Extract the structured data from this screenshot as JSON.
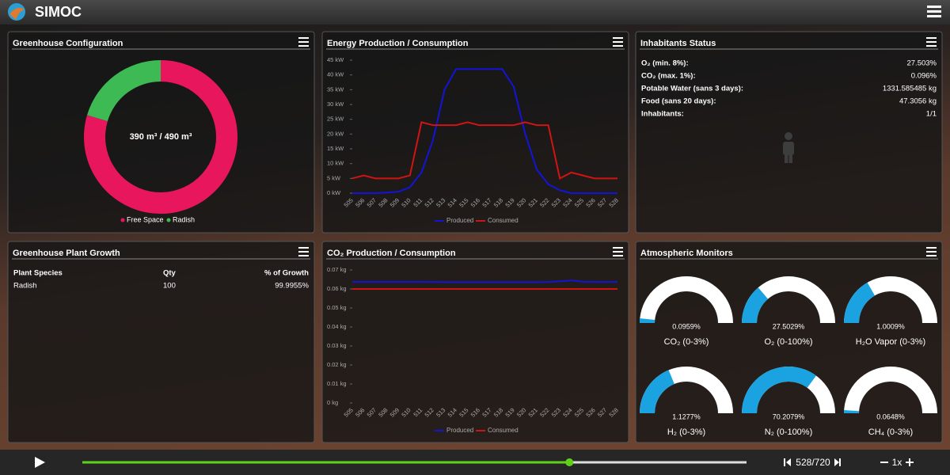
{
  "header": {
    "title": "SIMOC"
  },
  "greenhouse_configuration": {
    "title": "Greenhouse Configuration",
    "type": "donut",
    "center_label": "390 m³ / 490 m³",
    "categories": [
      "Free Space",
      "Radish"
    ],
    "values": [
      390,
      100
    ],
    "colors": [
      "#e8175d",
      "#3dba54"
    ]
  },
  "energy": {
    "title": "Energy Production / Consumption",
    "type": "line",
    "x": [
      505,
      506,
      507,
      508,
      509,
      510,
      511,
      512,
      513,
      514,
      515,
      516,
      517,
      518,
      519,
      520,
      521,
      522,
      523,
      524,
      525,
      526,
      527,
      528
    ],
    "xlim": [
      505,
      528
    ],
    "ylim": [
      0,
      45
    ],
    "yticks": [
      {
        "value": 0,
        "label": "0 kW"
      },
      {
        "value": 5,
        "label": "5 kW"
      },
      {
        "value": 10,
        "label": "10 kW"
      },
      {
        "value": 15,
        "label": "15 kW"
      },
      {
        "value": 20,
        "label": "20 kW"
      },
      {
        "value": 25,
        "label": "25 kW"
      },
      {
        "value": 30,
        "label": "30 kW"
      },
      {
        "value": 35,
        "label": "35 kW"
      },
      {
        "value": 40,
        "label": "40 kW"
      },
      {
        "value": 45,
        "label": "45 kW"
      }
    ],
    "series": [
      {
        "name": "Produced",
        "color": "#1414d8",
        "values": [
          0,
          0,
          0,
          0.2,
          0.5,
          2,
          7,
          18,
          35,
          42,
          42,
          42,
          42,
          42,
          36,
          20,
          8,
          3,
          1,
          0,
          0,
          0,
          0,
          0
        ]
      },
      {
        "name": "Consumed",
        "color": "#d01414",
        "values": [
          5,
          6,
          5,
          5,
          5,
          6,
          24,
          23,
          23,
          23,
          24,
          23,
          23,
          23,
          23,
          24,
          23,
          23,
          5,
          7,
          6,
          5,
          5,
          5
        ]
      }
    ]
  },
  "inhabitants_status": {
    "title": "Inhabitants Status",
    "rows": [
      [
        "O₂ (min. 8%):",
        "27.503%"
      ],
      [
        "CO₂ (max. 1%):",
        "0.096%"
      ],
      [
        "Potable Water (sans 3 days):",
        "1331.585485 kg"
      ],
      [
        "Food (sans 20 days):",
        "47.3056 kg"
      ],
      [
        "Inhabitants:",
        "1/1"
      ]
    ]
  },
  "plant_growth": {
    "title": "Greenhouse Plant Growth",
    "columns": [
      "Plant Species",
      "Qty",
      "% of Growth"
    ],
    "rows": [
      [
        "Radish",
        "100",
        "99.9955%"
      ]
    ]
  },
  "co2": {
    "title": "CO₂ Production / Consumption",
    "type": "line",
    "x": [
      505,
      506,
      507,
      508,
      509,
      510,
      511,
      512,
      513,
      514,
      515,
      516,
      517,
      518,
      519,
      520,
      521,
      522,
      523,
      524,
      525,
      526,
      527,
      528
    ],
    "xlim": [
      505,
      528
    ],
    "ylim": [
      0,
      0.07
    ],
    "yticks": [
      {
        "value": 0,
        "label": "0 kg"
      },
      {
        "value": 0.01,
        "label": "0.01 kg"
      },
      {
        "value": 0.02,
        "label": "0.02 kg"
      },
      {
        "value": 0.03,
        "label": "0.03 kg"
      },
      {
        "value": 0.04,
        "label": "0.04 kg"
      },
      {
        "value": 0.05,
        "label": "0.05 kg"
      },
      {
        "value": 0.06,
        "label": "0.06 kg"
      },
      {
        "value": 0.07,
        "label": "0.07 kg"
      }
    ],
    "series": [
      {
        "name": "Produced",
        "color": "#1414d8",
        "values": [
          0.0637,
          0.0637,
          0.0637,
          0.0637,
          0.0637,
          0.0637,
          0.0637,
          0.0637,
          0.0636,
          0.0636,
          0.0636,
          0.0636,
          0.0636,
          0.0636,
          0.0636,
          0.0636,
          0.0636,
          0.0637,
          0.064,
          0.0645,
          0.0638,
          0.0637,
          0.0637,
          0.0637
        ]
      },
      {
        "name": "Consumed",
        "color": "#d01414",
        "values": [
          0.06,
          0.06,
          0.06,
          0.06,
          0.06,
          0.06,
          0.06,
          0.06,
          0.06,
          0.06,
          0.06,
          0.06,
          0.06,
          0.06,
          0.06,
          0.06,
          0.06,
          0.06,
          0.06,
          0.06,
          0.06,
          0.06,
          0.06,
          0.06
        ]
      }
    ]
  },
  "atmospheric_monitors": {
    "title": "Atmospheric Monitors",
    "type": "gauge",
    "color": "#1aa3e0",
    "gauges": [
      {
        "label": "CO₂ (0-3%)",
        "value": 0.0959,
        "value_label": "0.0959%",
        "range": [
          0,
          3
        ]
      },
      {
        "label": "O₂ (0-100%)",
        "value": 27.5029,
        "value_label": "27.5029%",
        "range": [
          0,
          100
        ]
      },
      {
        "label": "H₂O Vapor (0-3%)",
        "value": 1.0009,
        "value_label": "1.0009%",
        "range": [
          0,
          3
        ]
      },
      {
        "label": "H₂ (0-3%)",
        "value": 1.1277,
        "value_label": "1.1277%",
        "range": [
          0,
          3
        ]
      },
      {
        "label": "N₂ (0-100%)",
        "value": 70.2079,
        "value_label": "70.2079%",
        "range": [
          0,
          100
        ]
      },
      {
        "label": "CH₄ (0-3%)",
        "value": 0.0648,
        "value_label": "0.0648%",
        "range": [
          0,
          3
        ]
      }
    ]
  },
  "player": {
    "step": 528,
    "steps": 720,
    "label": "528/720",
    "speed": "1x"
  }
}
